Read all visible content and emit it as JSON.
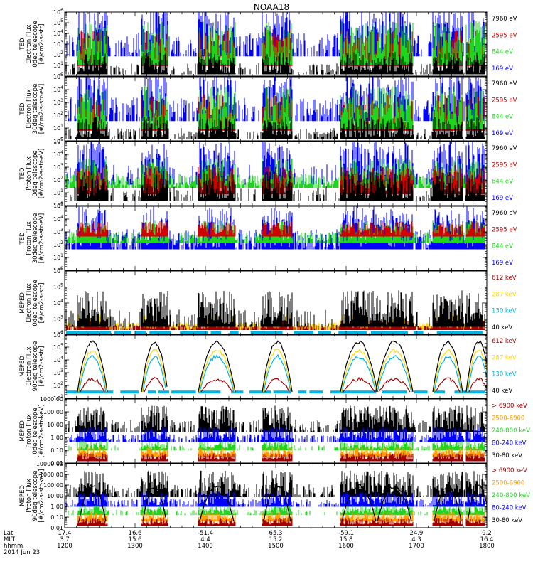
{
  "title": "NOAA18",
  "colors": {
    "black": "#000000",
    "red": "#d40000",
    "green": "#1fd51f",
    "blue": "#0000ff",
    "darkred": "#a00000",
    "yellow": "#ffd700",
    "cyan": "#00b4e6",
    "orange": "#ff9d00"
  },
  "chart_data": [
    {
      "type": "line",
      "ylabel": [
        "TED",
        "Electron Flux",
        "0deg telescope",
        "[#/cm2-s-str]"
      ],
      "ylog": true,
      "ylim_exp": [
        0,
        6
      ],
      "tick_labels": [
        "10^0",
        "10^1",
        "10^2",
        "10^3",
        "10^4",
        "10^5",
        "10^6"
      ],
      "legend": [
        {
          "label": "7960 eV",
          "color": "black"
        },
        {
          "label": "2595 eV",
          "color": "red"
        },
        {
          "label": "844 eV",
          "color": "green"
        },
        {
          "label": "169 eV",
          "color": "blue"
        }
      ]
    },
    {
      "type": "line",
      "ylabel": [
        "TED",
        "Electron Flux",
        "30deg telescope",
        "[#/cm2-s-str-eV]"
      ],
      "ylog": true,
      "ylim_exp": [
        0,
        5
      ],
      "tick_labels": [
        "10^0",
        "10^1",
        "10^2",
        "10^3",
        "10^4",
        "10^5"
      ],
      "legend": [
        {
          "label": "7960 eV",
          "color": "black"
        },
        {
          "label": "2595 eV",
          "color": "red"
        },
        {
          "label": "844 eV",
          "color": "green"
        },
        {
          "label": "169 eV",
          "color": "blue"
        }
      ]
    },
    {
      "type": "line",
      "ylabel": [
        "TED",
        "Proton Flux",
        "0deg telescope",
        "[#/cm2-s-str-eV]"
      ],
      "ylog": true,
      "ylim_exp": [
        0,
        5
      ],
      "tick_labels": [
        "10^0",
        "10^1",
        "10^2",
        "10^3",
        "10^4",
        "10^5"
      ],
      "legend": [
        {
          "label": "7960 eV",
          "color": "black"
        },
        {
          "label": "2595 eV",
          "color": "red"
        },
        {
          "label": "844 eV",
          "color": "green"
        },
        {
          "label": "169 eV",
          "color": "blue"
        }
      ]
    },
    {
      "type": "line",
      "ylabel": [
        "TED",
        "Proton Flux",
        "30deg telescope",
        "[#/cm2-s-str-eV]"
      ],
      "ylog": true,
      "ylim_exp": [
        0,
        5
      ],
      "tick_labels": [
        "10^0",
        "10^1",
        "10^2",
        "10^3",
        "10^4",
        "10^5"
      ],
      "legend": [
        {
          "label": "7960 eV",
          "color": "black"
        },
        {
          "label": "2595 eV",
          "color": "red"
        },
        {
          "label": "844 eV",
          "color": "green"
        },
        {
          "label": "169 eV",
          "color": "blue"
        }
      ]
    },
    {
      "type": "line",
      "ylabel": [
        "MEPED",
        "Electron Flux",
        "0deg telescope",
        "[#/cm2-s-str]"
      ],
      "ylog": true,
      "ylim_exp": [
        2,
        6
      ],
      "tick_labels": [
        "10^2",
        "10^3",
        "10^4",
        "10^5",
        "10^6"
      ],
      "legend": [
        {
          "label": "612 keV",
          "color": "darkred"
        },
        {
          "label": "287 keV",
          "color": "yellow"
        },
        {
          "label": "130 keV",
          "color": "cyan"
        },
        {
          "label": "40 keV",
          "color": "black"
        }
      ]
    },
    {
      "type": "line",
      "ylabel": [
        "MEPED",
        "Electron Flux",
        "90deg telescope",
        "[#/cm2-s-str]"
      ],
      "ylog": true,
      "ylim_exp": [
        1,
        6
      ],
      "tick_labels": [
        "10^1",
        "10^2",
        "10^3",
        "10^4",
        "10^5",
        "10^6"
      ],
      "legend": [
        {
          "label": "612 keV",
          "color": "darkred"
        },
        {
          "label": "287 keV",
          "color": "yellow"
        },
        {
          "label": "130 keV",
          "color": "cyan"
        },
        {
          "label": "40 keV",
          "color": "black"
        }
      ]
    },
    {
      "type": "line",
      "ylabel": [
        "MEPED",
        "Proton Flux",
        "0deg telescope",
        "[#/cm2-s-str-keV]"
      ],
      "ylog": true,
      "ylim_exp": [
        -2,
        3
      ],
      "tick_labels": [
        "0.01",
        "0.10",
        "1.00",
        "10.00",
        "100.00",
        "1000.00"
      ],
      "legend": [
        {
          "label": "> 6900 keV",
          "color": "darkred"
        },
        {
          "label": "2500-6900",
          "color": "orange"
        },
        {
          "label": "240-800 keV",
          "color": "green"
        },
        {
          "label": "80-240 keV",
          "color": "blue"
        },
        {
          "label": "30-80 keV",
          "color": "black"
        }
      ]
    },
    {
      "type": "line",
      "ylabel": [
        "MEPED",
        "Proton Flux",
        "90deg telescope",
        "[#/cm2-s-str-keV]"
      ],
      "ylog": true,
      "ylim_exp": [
        -2,
        4
      ],
      "tick_labels": [
        "0.01",
        "0.10",
        "1.00",
        "10.00",
        "100.00",
        "1000.00",
        "10000.00"
      ],
      "legend": [
        {
          "label": "> 6900 keV",
          "color": "darkred"
        },
        {
          "label": "2500-6900",
          "color": "orange"
        },
        {
          "label": "240-800 keV",
          "color": "green"
        },
        {
          "label": "80-240 keV",
          "color": "blue"
        },
        {
          "label": "30-80 keV",
          "color": "black"
        }
      ]
    }
  ],
  "x_axis": {
    "row_labels": [
      "Lat",
      "MLT",
      "hhmm",
      "2014 Jun 23"
    ],
    "ticks": [
      {
        "lat": "17.4",
        "mlt": "3.7",
        "hhmm": "1200"
      },
      {
        "lat": "16.6",
        "mlt": "15.6",
        "hhmm": "1300"
      },
      {
        "lat": "-51.4",
        "mlt": "4.4",
        "hhmm": "1400"
      },
      {
        "lat": "65.3",
        "mlt": "15.2",
        "hhmm": "1500"
      },
      {
        "lat": "-59.1",
        "mlt": "15.8",
        "hhmm": "1600"
      },
      {
        "lat": "24.9",
        "mlt": "4.3",
        "hhmm": "1700"
      },
      {
        "lat": "9.2",
        "mlt": "16.4",
        "hhmm": "1800"
      }
    ]
  }
}
